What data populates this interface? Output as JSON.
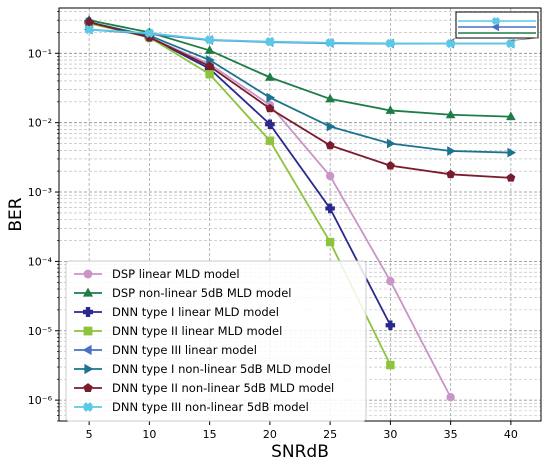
{
  "chart_data": {
    "type": "line",
    "xlabel": "SNRdB",
    "ylabel": "BER",
    "y_scale": "log",
    "x_ticks": [
      5,
      10,
      15,
      20,
      25,
      30,
      35,
      40
    ],
    "x_tick_labels": [
      "5",
      "10",
      "15",
      "20",
      "25",
      "30",
      "35",
      "40"
    ],
    "y_ticks": [
      1e-06,
      1e-05,
      0.0001,
      0.001,
      0.01,
      0.1
    ],
    "y_tick_labels": [
      "10⁻⁶",
      "10⁻⁵",
      "10⁻⁴",
      "10⁻³",
      "10⁻²",
      "10⁻¹"
    ],
    "xlim": [
      2.5,
      42.5
    ],
    "ylim": [
      5e-07,
      0.45
    ],
    "grid": true,
    "legend_position": "bottom-left",
    "inset": true,
    "series": [
      {
        "name": "DSP linear MLD model",
        "color": "#c994c7",
        "marker": "circle",
        "x": [
          5,
          10,
          15,
          20,
          25,
          30,
          35
        ],
        "y": [
          0.28,
          0.17,
          0.07,
          0.018,
          0.0017,
          5.2e-05,
          1.1e-06
        ]
      },
      {
        "name": "DSP non-linear 5dB MLD model",
        "color": "#1e7d46",
        "marker": "triangle-up",
        "x": [
          5,
          10,
          15,
          20,
          25,
          30,
          35,
          40
        ],
        "y": [
          0.3,
          0.2,
          0.11,
          0.045,
          0.022,
          0.015,
          0.013,
          0.0122
        ]
      },
      {
        "name": "DNN type I linear MLD model",
        "color": "#2a2a8c",
        "marker": "plus",
        "x": [
          5,
          10,
          15,
          20,
          25,
          30
        ],
        "y": [
          0.28,
          0.17,
          0.06,
          0.0095,
          0.00058,
          1.2e-05
        ]
      },
      {
        "name": "DNN type II linear MLD model",
        "color": "#8cc43c",
        "marker": "square",
        "x": [
          5,
          10,
          15,
          20,
          25,
          30
        ],
        "y": [
          0.27,
          0.17,
          0.05,
          0.0055,
          0.00019,
          3.2e-06
        ]
      },
      {
        "name": "DNN type III linear model",
        "color": "#4a6fc4",
        "marker": "triangle-left",
        "x": [
          5,
          10,
          15,
          20,
          25,
          30,
          35,
          40
        ],
        "y": [
          0.22,
          0.19,
          0.155,
          0.145,
          0.14,
          0.138,
          0.138,
          0.138
        ]
      },
      {
        "name": "DNN type I non-linear 5dB MLD model",
        "color": "#1c7390",
        "marker": "triangle-right",
        "x": [
          5,
          10,
          15,
          20,
          25,
          30,
          35,
          40
        ],
        "y": [
          0.28,
          0.18,
          0.08,
          0.023,
          0.0088,
          0.005,
          0.0039,
          0.0037
        ]
      },
      {
        "name": "DNN type II non-linear 5dB MLD model",
        "color": "#7a1c2e",
        "marker": "pentagon",
        "x": [
          5,
          10,
          15,
          20,
          25,
          30,
          35,
          40
        ],
        "y": [
          0.28,
          0.17,
          0.065,
          0.016,
          0.0047,
          0.0024,
          0.0018,
          0.0016
        ]
      },
      {
        "name": "DNN type III non-linear 5dB model",
        "color": "#5bc8e6",
        "marker": "x-filled",
        "x": [
          5,
          10,
          15,
          20,
          25,
          30,
          35,
          40
        ],
        "y": [
          0.22,
          0.195,
          0.157,
          0.147,
          0.142,
          0.139,
          0.138,
          0.138
        ]
      }
    ]
  }
}
